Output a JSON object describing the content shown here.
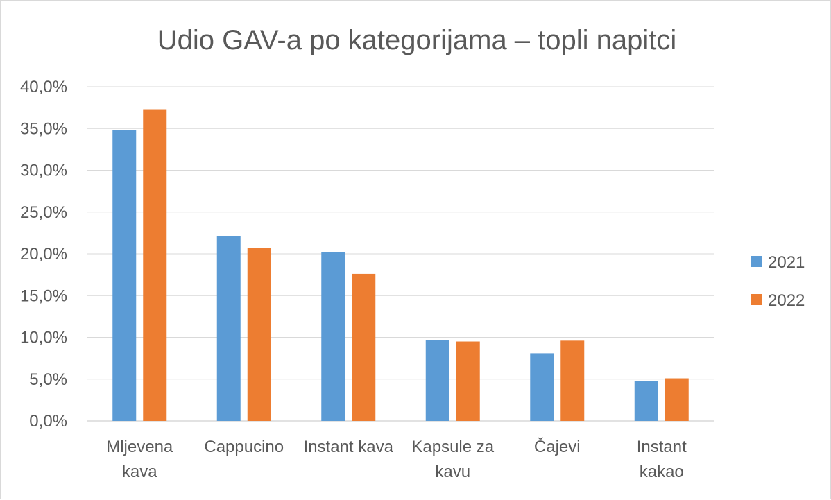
{
  "chart_data": {
    "type": "bar",
    "title": "Udio GAV-a po kategorijama – topli napitci",
    "xlabel": "",
    "ylabel": "",
    "categories": [
      [
        "Mljevena",
        "kava"
      ],
      [
        "Cappucino"
      ],
      [
        "Instant kava"
      ],
      [
        "Kapsule za",
        "kavu"
      ],
      [
        "Čajevi"
      ],
      [
        "Instant",
        "kakao"
      ]
    ],
    "series": [
      {
        "name": "2021",
        "color": "#5b9bd5",
        "values": [
          34.8,
          22.1,
          20.2,
          9.7,
          8.1,
          4.8
        ]
      },
      {
        "name": "2022",
        "color": "#ed7d31",
        "values": [
          37.3,
          20.7,
          17.6,
          9.5,
          9.6,
          5.1
        ]
      }
    ],
    "ylim": [
      0,
      40
    ],
    "yticks": [
      "0,0%",
      "5,0%",
      "10,0%",
      "15,0%",
      "20,0%",
      "25,0%",
      "30,0%",
      "35,0%",
      "40,0%"
    ],
    "grid": true,
    "legend": "right"
  }
}
